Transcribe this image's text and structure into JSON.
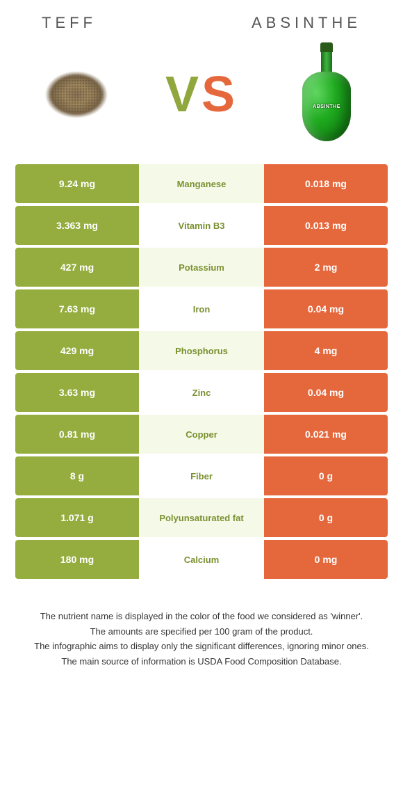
{
  "colors": {
    "left": "#94ad3e",
    "right": "#e5683d",
    "mid_odd": "#f5f9e8",
    "mid_even": "#ffffff",
    "winner_left_text": "#7a9130",
    "winner_right_text": "#e5683d"
  },
  "header": {
    "left_title": "Teff",
    "right_title": "Absinthe"
  },
  "vs": {
    "v": "V",
    "s": "S"
  },
  "bottle_label": "ABSINTHE",
  "rows": [
    {
      "left": "9.24 mg",
      "name": "Manganese",
      "right": "0.018 mg",
      "winner": "left"
    },
    {
      "left": "3.363 mg",
      "name": "Vitamin B3",
      "right": "0.013 mg",
      "winner": "left"
    },
    {
      "left": "427 mg",
      "name": "Potassium",
      "right": "2 mg",
      "winner": "left"
    },
    {
      "left": "7.63 mg",
      "name": "Iron",
      "right": "0.04 mg",
      "winner": "left"
    },
    {
      "left": "429 mg",
      "name": "Phosphorus",
      "right": "4 mg",
      "winner": "left"
    },
    {
      "left": "3.63 mg",
      "name": "Zinc",
      "right": "0.04 mg",
      "winner": "left"
    },
    {
      "left": "0.81 mg",
      "name": "Copper",
      "right": "0.021 mg",
      "winner": "left"
    },
    {
      "left": "8 g",
      "name": "Fiber",
      "right": "0 g",
      "winner": "left"
    },
    {
      "left": "1.071 g",
      "name": "Polyunsaturated fat",
      "right": "0 g",
      "winner": "left"
    },
    {
      "left": "180 mg",
      "name": "Calcium",
      "right": "0 mg",
      "winner": "left"
    }
  ],
  "footer": {
    "l1": "The nutrient name is displayed in the color of the food we considered as 'winner'.",
    "l2": "The amounts are specified per 100 gram of the product.",
    "l3": "The infographic aims to display only the significant differences, ignoring minor ones.",
    "l4": "The main source of information is USDA Food Composition Database."
  }
}
